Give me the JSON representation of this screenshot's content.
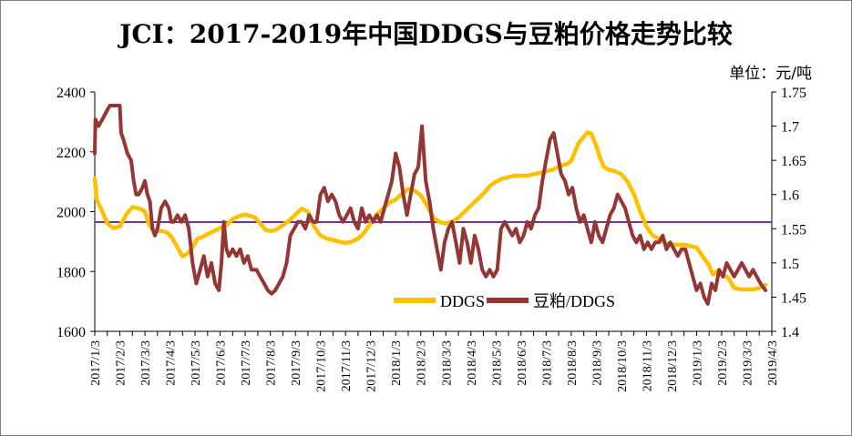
{
  "title": "JCI：2017-2019年中国DDGS与豆粕价格走势比较",
  "unit_label": "单位：元/吨",
  "colors": {
    "ddgs": "#FFC000",
    "ratio": "#943634",
    "reference_line": "#7030A0",
    "axis": "#000000",
    "background": "#FFFFFF"
  },
  "chart_data": {
    "type": "line",
    "title": "JCI：2017-2019年中国DDGS与豆粕价格走势比较",
    "xlabel": "",
    "ylabel": "单位：元/吨",
    "ylim": [
      1600,
      2400
    ],
    "y_ticks": [
      "1600",
      "1800",
      "2000",
      "2200",
      "2400"
    ],
    "y2lim": [
      1.4,
      1.75
    ],
    "y2_ticks": [
      "1.4",
      "1.45",
      "1.5",
      "1.55",
      "1.6",
      "1.65",
      "1.7",
      "1.75"
    ],
    "x_ticks": [
      "2017/1/3",
      "2017/2/3",
      "2017/3/3",
      "2017/4/3",
      "2017/5/3",
      "2017/6/3",
      "2017/7/3",
      "2017/8/3",
      "2017/9/3",
      "2017/10/3",
      "2017/11/3",
      "2017/12/3",
      "2018/1/3",
      "2018/2/3",
      "2018/3/3",
      "2018/4/3",
      "2018/5/3",
      "2018/6/3",
      "2018/7/3",
      "2018/8/3",
      "2018/9/3",
      "2018/10/3",
      "2018/11/3",
      "2018/12/3",
      "2019/1/3",
      "2019/2/3",
      "2019/3/3",
      "2019/4/3"
    ],
    "reference_line": {
      "axis": "left",
      "value": 1965
    },
    "legend": {
      "position": "bottom-right-inside"
    },
    "series": [
      {
        "name": "DDGS",
        "axis": "left",
        "points": [
          [
            0,
            2110
          ],
          [
            0.15,
            2040
          ],
          [
            0.5,
            2010
          ],
          [
            1,
            1960
          ],
          [
            1.5,
            1945
          ],
          [
            2,
            1950
          ],
          [
            2.5,
            1990
          ],
          [
            3,
            2015
          ],
          [
            3.6,
            2010
          ],
          [
            4,
            2000
          ],
          [
            4.3,
            1960
          ],
          [
            4.6,
            1940
          ],
          [
            5,
            1935
          ],
          [
            5.4,
            1935
          ],
          [
            5.8,
            1930
          ],
          [
            6.2,
            1910
          ],
          [
            6.6,
            1880
          ],
          [
            7,
            1850
          ],
          [
            7.4,
            1860
          ],
          [
            7.8,
            1880
          ],
          [
            8.2,
            1910
          ],
          [
            8.6,
            1915
          ],
          [
            9,
            1925
          ],
          [
            9.5,
            1935
          ],
          [
            10,
            1945
          ],
          [
            10.5,
            1955
          ],
          [
            11,
            1975
          ],
          [
            11.5,
            1985
          ],
          [
            12,
            1990
          ],
          [
            12.5,
            1985
          ],
          [
            12.8,
            1980
          ],
          [
            13.2,
            1960
          ],
          [
            13.6,
            1940
          ],
          [
            14,
            1935
          ],
          [
            14.5,
            1940
          ],
          [
            15,
            1955
          ],
          [
            15.5,
            1970
          ],
          [
            16,
            1990
          ],
          [
            16.5,
            2010
          ],
          [
            17,
            2000
          ],
          [
            17.5,
            1950
          ],
          [
            18,
            1920
          ],
          [
            18.5,
            1910
          ],
          [
            19,
            1905
          ],
          [
            19.5,
            1900
          ],
          [
            20,
            1895
          ],
          [
            20.5,
            1900
          ],
          [
            21,
            1910
          ],
          [
            21.5,
            1930
          ],
          [
            22,
            1960
          ],
          [
            22.5,
            1990
          ],
          [
            23,
            2010
          ],
          [
            23.5,
            2030
          ],
          [
            24,
            2040
          ],
          [
            24.5,
            2060
          ],
          [
            25,
            2075
          ],
          [
            25.5,
            2070
          ],
          [
            26,
            2055
          ],
          [
            26.5,
            2020
          ],
          [
            27,
            1980
          ],
          [
            27.5,
            1965
          ],
          [
            28,
            1960
          ],
          [
            28.5,
            1965
          ],
          [
            29,
            1980
          ],
          [
            29.5,
            2000
          ],
          [
            30,
            2020
          ],
          [
            30.5,
            2040
          ],
          [
            31,
            2060
          ],
          [
            31.5,
            2085
          ],
          [
            32,
            2100
          ],
          [
            32.5,
            2110
          ],
          [
            33,
            2115
          ],
          [
            33.5,
            2120
          ],
          [
            34,
            2120
          ],
          [
            34.5,
            2120
          ],
          [
            35,
            2125
          ],
          [
            35.5,
            2130
          ],
          [
            36,
            2135
          ],
          [
            36.5,
            2140
          ],
          [
            37,
            2150
          ],
          [
            37.3,
            2155
          ],
          [
            37.7,
            2160
          ],
          [
            38,
            2170
          ],
          [
            38.3,
            2200
          ],
          [
            38.6,
            2230
          ],
          [
            39,
            2250
          ],
          [
            39.3,
            2265
          ],
          [
            39.6,
            2260
          ],
          [
            40,
            2220
          ],
          [
            40.3,
            2180
          ],
          [
            40.6,
            2150
          ],
          [
            41,
            2140
          ],
          [
            41.5,
            2135
          ],
          [
            42,
            2125
          ],
          [
            42.5,
            2100
          ],
          [
            43,
            2060
          ],
          [
            43.5,
            2000
          ],
          [
            44,
            1950
          ],
          [
            44.5,
            1920
          ],
          [
            45,
            1910
          ],
          [
            45.5,
            1895
          ],
          [
            46,
            1890
          ],
          [
            46.5,
            1890
          ],
          [
            47,
            1890
          ],
          [
            47.5,
            1885
          ],
          [
            48,
            1880
          ],
          [
            48.5,
            1850
          ],
          [
            49,
            1820
          ],
          [
            49.3,
            1790
          ],
          [
            49.6,
            1800
          ],
          [
            50,
            1790
          ],
          [
            50.5,
            1780
          ],
          [
            51,
            1745
          ],
          [
            51.5,
            1740
          ],
          [
            52,
            1740
          ],
          [
            52.5,
            1740
          ],
          [
            53,
            1745
          ],
          [
            53.5,
            1755
          ]
        ]
      },
      {
        "name": "豆粕/DDGS",
        "axis": "right",
        "points": [
          [
            0,
            1.66
          ],
          [
            0.05,
            1.71
          ],
          [
            0.3,
            1.7
          ],
          [
            0.6,
            1.71
          ],
          [
            0.9,
            1.72
          ],
          [
            1.2,
            1.73
          ],
          [
            1.5,
            1.73
          ],
          [
            1.8,
            1.73
          ],
          [
            2,
            1.73
          ],
          [
            2.1,
            1.69
          ],
          [
            2.3,
            1.68
          ],
          [
            2.6,
            1.66
          ],
          [
            2.9,
            1.65
          ],
          [
            3.1,
            1.62
          ],
          [
            3.3,
            1.6
          ],
          [
            3.5,
            1.6
          ],
          [
            3.8,
            1.61
          ],
          [
            4.0,
            1.62
          ],
          [
            4.2,
            1.6
          ],
          [
            4.4,
            1.59
          ],
          [
            4.6,
            1.55
          ],
          [
            4.8,
            1.54
          ],
          [
            5.0,
            1.55
          ],
          [
            5.3,
            1.58
          ],
          [
            5.6,
            1.59
          ],
          [
            5.9,
            1.58
          ],
          [
            6.1,
            1.56
          ],
          [
            6.3,
            1.56
          ],
          [
            6.6,
            1.57
          ],
          [
            6.9,
            1.56
          ],
          [
            7.2,
            1.57
          ],
          [
            7.5,
            1.55
          ],
          [
            7.8,
            1.5
          ],
          [
            8.1,
            1.47
          ],
          [
            8.4,
            1.49
          ],
          [
            8.7,
            1.51
          ],
          [
            9.0,
            1.48
          ],
          [
            9.3,
            1.5
          ],
          [
            9.6,
            1.47
          ],
          [
            9.9,
            1.46
          ],
          [
            10.1,
            1.5
          ],
          [
            10.3,
            1.56
          ],
          [
            10.5,
            1.52
          ],
          [
            10.7,
            1.51
          ],
          [
            11.0,
            1.52
          ],
          [
            11.3,
            1.51
          ],
          [
            11.6,
            1.52
          ],
          [
            11.9,
            1.5
          ],
          [
            12.2,
            1.51
          ],
          [
            12.5,
            1.49
          ],
          [
            12.9,
            1.49
          ],
          [
            13.2,
            1.48
          ],
          [
            13.5,
            1.47
          ],
          [
            13.8,
            1.46
          ],
          [
            14.1,
            1.455
          ],
          [
            14.4,
            1.46
          ],
          [
            14.7,
            1.47
          ],
          [
            15.0,
            1.48
          ],
          [
            15.3,
            1.5
          ],
          [
            15.6,
            1.54
          ],
          [
            15.9,
            1.55
          ],
          [
            16.2,
            1.56
          ],
          [
            16.5,
            1.56
          ],
          [
            16.8,
            1.55
          ],
          [
            17.1,
            1.57
          ],
          [
            17.4,
            1.56
          ],
          [
            17.7,
            1.56
          ],
          [
            18.0,
            1.6
          ],
          [
            18.3,
            1.61
          ],
          [
            18.6,
            1.59
          ],
          [
            18.9,
            1.6
          ],
          [
            19.2,
            1.59
          ],
          [
            19.5,
            1.57
          ],
          [
            19.8,
            1.56
          ],
          [
            20.1,
            1.57
          ],
          [
            20.4,
            1.58
          ],
          [
            20.7,
            1.56
          ],
          [
            21.0,
            1.55
          ],
          [
            21.3,
            1.58
          ],
          [
            21.6,
            1.56
          ],
          [
            21.9,
            1.57
          ],
          [
            22.2,
            1.56
          ],
          [
            22.5,
            1.57
          ],
          [
            22.8,
            1.56
          ],
          [
            23.1,
            1.58
          ],
          [
            23.4,
            1.6
          ],
          [
            23.7,
            1.62
          ],
          [
            24.0,
            1.66
          ],
          [
            24.3,
            1.64
          ],
          [
            24.6,
            1.6
          ],
          [
            24.9,
            1.57
          ],
          [
            25.2,
            1.6
          ],
          [
            25.5,
            1.63
          ],
          [
            25.8,
            1.64
          ],
          [
            26.1,
            1.7
          ],
          [
            26.4,
            1.62
          ],
          [
            26.7,
            1.59
          ],
          [
            27.0,
            1.55
          ],
          [
            27.3,
            1.52
          ],
          [
            27.6,
            1.49
          ],
          [
            27.9,
            1.53
          ],
          [
            28.2,
            1.55
          ],
          [
            28.5,
            1.56
          ],
          [
            28.8,
            1.53
          ],
          [
            29.1,
            1.5
          ],
          [
            29.4,
            1.55
          ],
          [
            29.7,
            1.53
          ],
          [
            30.0,
            1.5
          ],
          [
            30.3,
            1.54
          ],
          [
            30.6,
            1.52
          ],
          [
            30.9,
            1.49
          ],
          [
            31.2,
            1.48
          ],
          [
            31.5,
            1.49
          ],
          [
            31.8,
            1.48
          ],
          [
            32.1,
            1.49
          ],
          [
            32.4,
            1.55
          ],
          [
            32.7,
            1.56
          ],
          [
            33.0,
            1.55
          ],
          [
            33.3,
            1.54
          ],
          [
            33.6,
            1.55
          ],
          [
            33.9,
            1.53
          ],
          [
            34.2,
            1.54
          ],
          [
            34.5,
            1.56
          ],
          [
            34.8,
            1.55
          ],
          [
            35.1,
            1.57
          ],
          [
            35.4,
            1.58
          ],
          [
            35.7,
            1.62
          ],
          [
            36.0,
            1.65
          ],
          [
            36.3,
            1.68
          ],
          [
            36.6,
            1.69
          ],
          [
            36.9,
            1.66
          ],
          [
            37.2,
            1.63
          ],
          [
            37.5,
            1.62
          ],
          [
            37.8,
            1.6
          ],
          [
            38.1,
            1.61
          ],
          [
            38.4,
            1.58
          ],
          [
            38.7,
            1.56
          ],
          [
            39.0,
            1.57
          ],
          [
            39.3,
            1.55
          ],
          [
            39.6,
            1.53
          ],
          [
            39.9,
            1.56
          ],
          [
            40.2,
            1.54
          ],
          [
            40.5,
            1.53
          ],
          [
            40.8,
            1.55
          ],
          [
            41.1,
            1.57
          ],
          [
            41.4,
            1.58
          ],
          [
            41.7,
            1.6
          ],
          [
            42.0,
            1.59
          ],
          [
            42.3,
            1.58
          ],
          [
            42.6,
            1.56
          ],
          [
            42.9,
            1.54
          ],
          [
            43.2,
            1.53
          ],
          [
            43.5,
            1.54
          ],
          [
            43.8,
            1.52
          ],
          [
            44.1,
            1.53
          ],
          [
            44.4,
            1.52
          ],
          [
            44.7,
            1.53
          ],
          [
            45.0,
            1.53
          ],
          [
            45.3,
            1.54
          ],
          [
            45.6,
            1.52
          ],
          [
            45.9,
            1.53
          ],
          [
            46.2,
            1.52
          ],
          [
            46.5,
            1.51
          ],
          [
            46.8,
            1.52
          ],
          [
            47.1,
            1.52
          ],
          [
            47.4,
            1.5
          ],
          [
            47.7,
            1.48
          ],
          [
            48.0,
            1.46
          ],
          [
            48.3,
            1.47
          ],
          [
            48.6,
            1.45
          ],
          [
            48.9,
            1.44
          ],
          [
            49.2,
            1.47
          ],
          [
            49.5,
            1.46
          ],
          [
            49.8,
            1.49
          ],
          [
            50.1,
            1.48
          ],
          [
            50.4,
            1.5
          ],
          [
            50.7,
            1.49
          ],
          [
            51.0,
            1.48
          ],
          [
            51.3,
            1.49
          ],
          [
            51.6,
            1.5
          ],
          [
            51.9,
            1.49
          ],
          [
            52.2,
            1.48
          ],
          [
            52.5,
            1.49
          ],
          [
            52.8,
            1.48
          ],
          [
            53.1,
            1.47
          ],
          [
            53.5,
            1.46
          ]
        ]
      }
    ]
  }
}
